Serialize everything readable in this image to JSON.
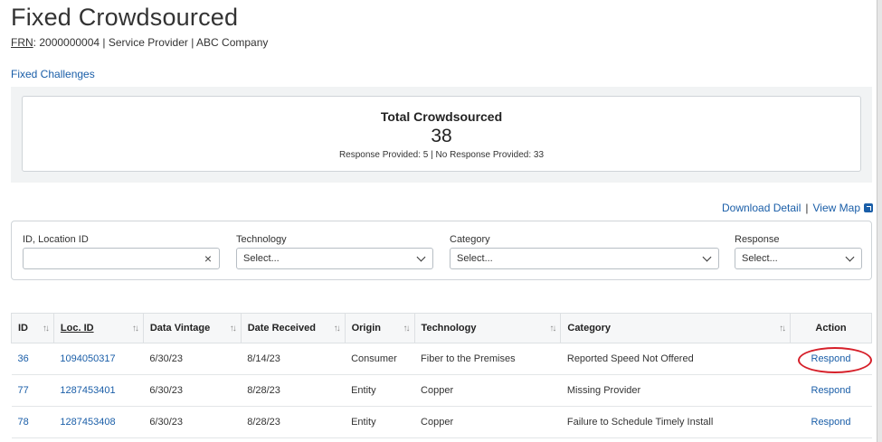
{
  "header": {
    "title": "Fixed Crowdsourced",
    "frn_label": "FRN",
    "frn_rest": ": 2000000004 | Service Provider | ABC Company"
  },
  "nav": {
    "fixed_challenges": "Fixed Challenges"
  },
  "summary": {
    "title": "Total Crowdsourced",
    "count": "38",
    "sub": "Response Provided: 5 | No Response Provided: 33"
  },
  "links": {
    "download": "Download Detail",
    "separator": "|",
    "view_map": "View Map"
  },
  "filters": {
    "id": {
      "label": "ID, Location ID",
      "value": "",
      "clear": "×"
    },
    "technology": {
      "label": "Technology",
      "value": "Select..."
    },
    "category": {
      "label": "Category",
      "value": "Select..."
    },
    "response": {
      "label": "Response",
      "value": "Select..."
    }
  },
  "table": {
    "sort_glyph": "↑↓",
    "columns": [
      "ID",
      "Loc. ID",
      "Data Vintage",
      "Date Received",
      "Origin",
      "Technology",
      "Category",
      "Action"
    ],
    "rows": [
      {
        "id": "36",
        "loc_id": "1094050317",
        "vintage": "6/30/23",
        "received": "8/14/23",
        "origin": "Consumer",
        "technology": "Fiber to the Premises",
        "category": "Reported Speed Not Offered",
        "action": "Respond"
      },
      {
        "id": "77",
        "loc_id": "1287453401",
        "vintage": "6/30/23",
        "received": "8/28/23",
        "origin": "Entity",
        "technology": "Copper",
        "category": "Missing Provider",
        "action": "Respond"
      },
      {
        "id": "78",
        "loc_id": "1287453408",
        "vintage": "6/30/23",
        "received": "8/28/23",
        "origin": "Entity",
        "technology": "Copper",
        "category": "Failure to Schedule Timely Install",
        "action": "Respond"
      }
    ]
  },
  "colors": {
    "link": "#1a5ea8",
    "highlight": "#d6202a"
  }
}
